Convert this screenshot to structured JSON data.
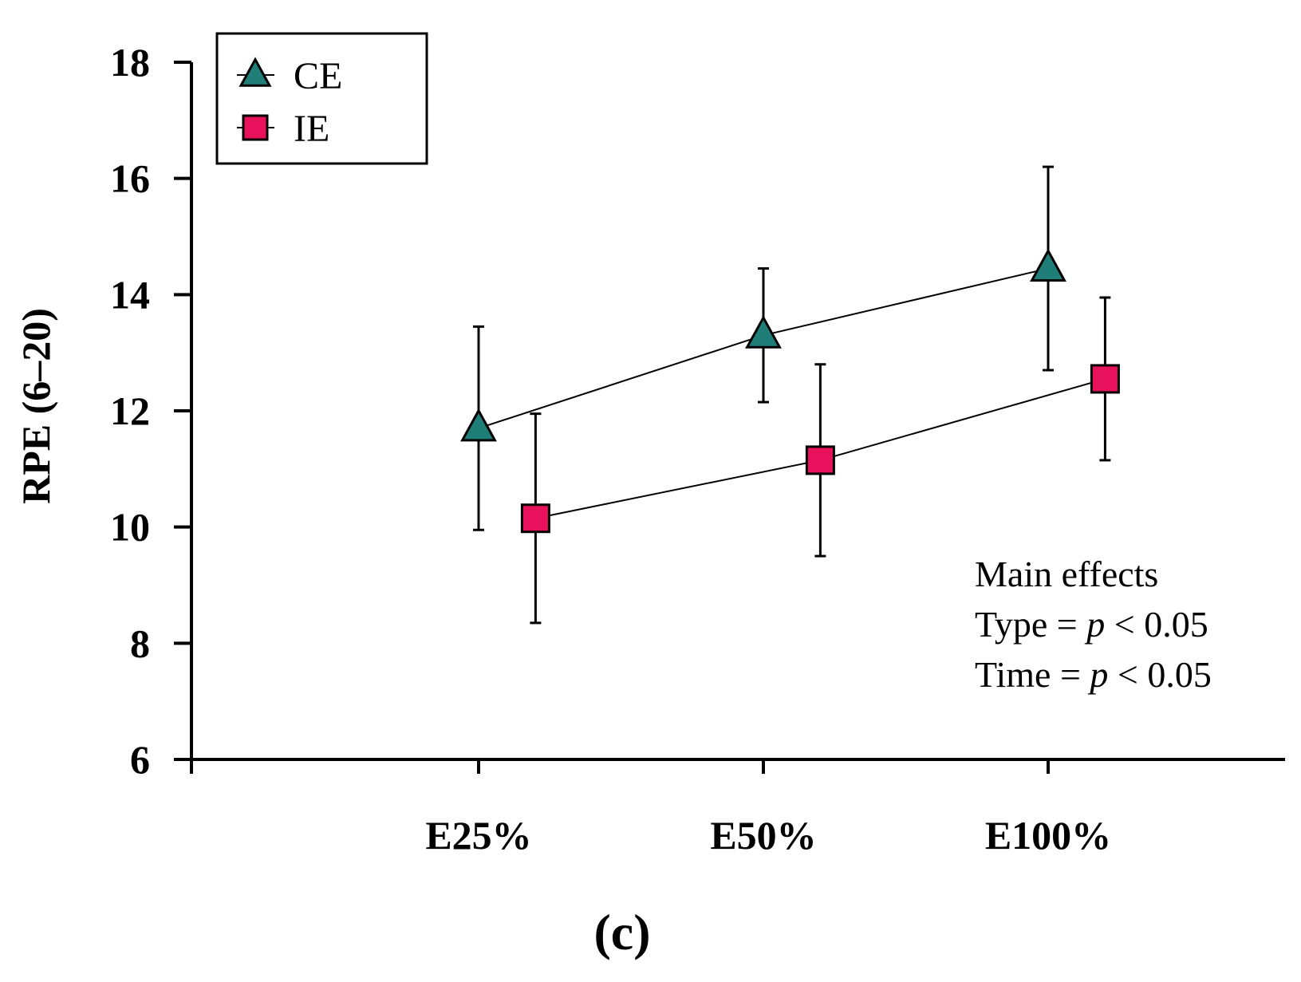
{
  "chart_data": {
    "type": "line",
    "ylabel": "RPE (6–20)",
    "xlabel": "",
    "ylim": [
      6,
      18
    ],
    "yticks": [
      6,
      8,
      10,
      12,
      14,
      16,
      18
    ],
    "categories": [
      "E25%",
      "E50%",
      "E100%"
    ],
    "grid": false,
    "legend_position": "top-left",
    "series": [
      {
        "name": "CE",
        "marker": "triangle",
        "color": "#1f7f78",
        "values": [
          11.7,
          13.3,
          14.45
        ],
        "errors": [
          1.75,
          1.15,
          1.75
        ],
        "offset": 0
      },
      {
        "name": "IE",
        "marker": "square",
        "color": "#e8125c",
        "values": [
          10.15,
          11.15,
          12.55
        ],
        "errors": [
          1.8,
          1.65,
          1.4
        ],
        "offset": 0.2
      }
    ],
    "annotations": {
      "heading": "Main effects",
      "type_line": {
        "label": "Type = ",
        "p": "p",
        "rest": " < 0.05"
      },
      "time_line": {
        "label": "Time = ",
        "p": "p",
        "rest": " < 0.05"
      }
    },
    "panel_label": "(c)"
  }
}
